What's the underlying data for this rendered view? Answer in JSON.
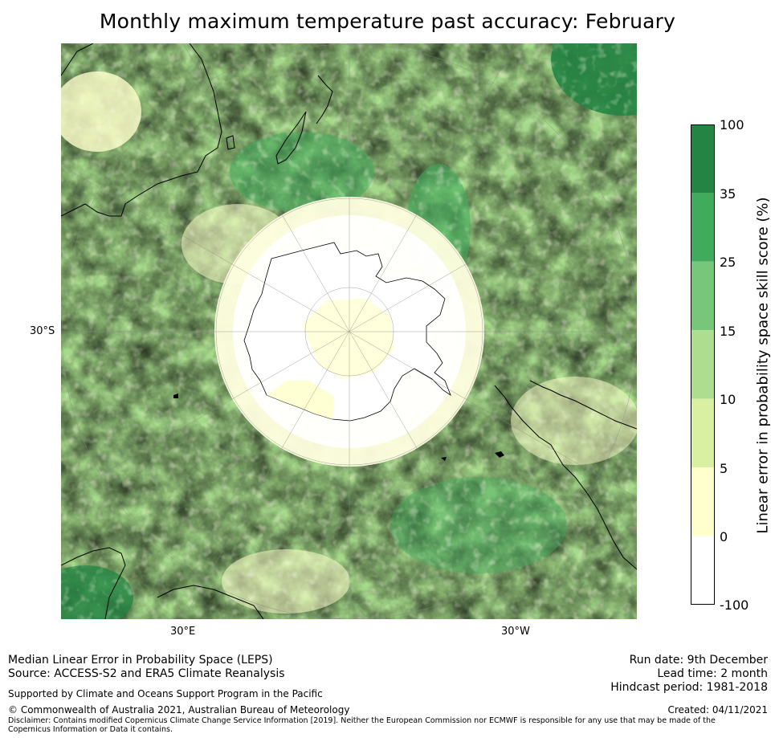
{
  "title": "Monthly maximum temperature past accuracy: February",
  "map": {
    "lat_label": "30°S",
    "lon_labels": [
      "30°E",
      "30°W"
    ]
  },
  "colorbar": {
    "label": "Linear error in probability space skill score (%)",
    "ticks": [
      "100",
      "35",
      "25",
      "15",
      "10",
      "5",
      "0",
      "-100"
    ],
    "bands": [
      {
        "range": "35-100",
        "color": "#238443"
      },
      {
        "range": "25-35",
        "color": "#41ab5d"
      },
      {
        "range": "15-25",
        "color": "#78c679"
      },
      {
        "range": "10-15",
        "color": "#addd8e"
      },
      {
        "range": "5-10",
        "color": "#d9f0a3"
      },
      {
        "range": "0-5",
        "color": "#ffffcc"
      },
      {
        "range": "-100-0",
        "color": "#ffffff"
      }
    ]
  },
  "footer": {
    "method": "Median Linear Error in Probability Space (LEPS)",
    "source": "Source: ACCESS-S2 and ERA5 Climate Reanalysis",
    "support": "Supported by Climate and Oceans Support Program in the Pacific",
    "copyright": "© Commonwealth of Australia 2021, Australian Bureau of Meteorology",
    "disclaimer": "Disclaimer: Contains modified Copernicus Climate Change Service Information [2019]. Neither the European Commission nor ECMWF is responsible for any use that may be made of the Copernicus Information or Data it contains.",
    "run_date": "Run date: 9th December",
    "lead_time": "Lead time: 2 month",
    "hindcast": "Hindcast period: 1981-2018",
    "created": "Created: 04/11/2021"
  }
}
